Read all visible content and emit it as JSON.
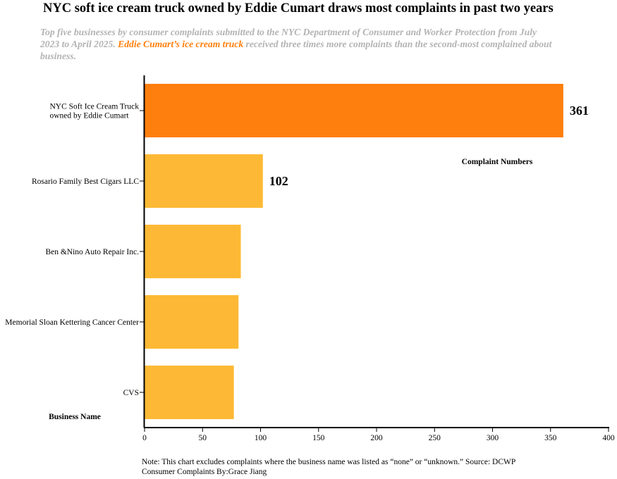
{
  "header": {
    "title": "NYC soft ice cream truck owned by Eddie Cumart draws most complaints in past two years",
    "subtitle_part1": "Top five businesses by consumer complaints submitted to the NYC Department of Consumer and Worker Protection from July 2023 to April 2025. ",
    "subtitle_highlight": "Eddie Cumart’s ice cream truck",
    "subtitle_part2": " received three times more complaints than the second-most complained about business."
  },
  "footer": {
    "note": "Note: This chart excludes complaints where the business name was listed as “none” or “unknown.” Source: DCWP Consumer Complaints By:Grace Jiang"
  },
  "colors": {
    "highlight": "#ff7f0e",
    "bar": "#fdb935",
    "subtitle": "#b3b3b3"
  },
  "chart_data": {
    "type": "bar",
    "orientation": "horizontal",
    "xlabel": "Complaint Numbers",
    "ylabel": "Business Name",
    "xlim": [
      0,
      400
    ],
    "xticks": [
      0,
      50,
      100,
      150,
      200,
      250,
      300,
      350,
      400
    ],
    "grid": false,
    "categories": [
      [
        "NYC Soft Ice Cream Truck",
        "owned by Eddie Cumart"
      ],
      [
        "Rosario Family Best Cigars LLC"
      ],
      [
        "Ben &Nino Auto Repair Inc."
      ],
      [
        "Memorial Sloan Kettering Cancer Center"
      ],
      [
        "CVS"
      ]
    ],
    "values": [
      361,
      102,
      83,
      81,
      77
    ],
    "highlighted": [
      true,
      false,
      false,
      false,
      false
    ],
    "data_labels": [
      "361",
      "102",
      "",
      "",
      ""
    ]
  }
}
